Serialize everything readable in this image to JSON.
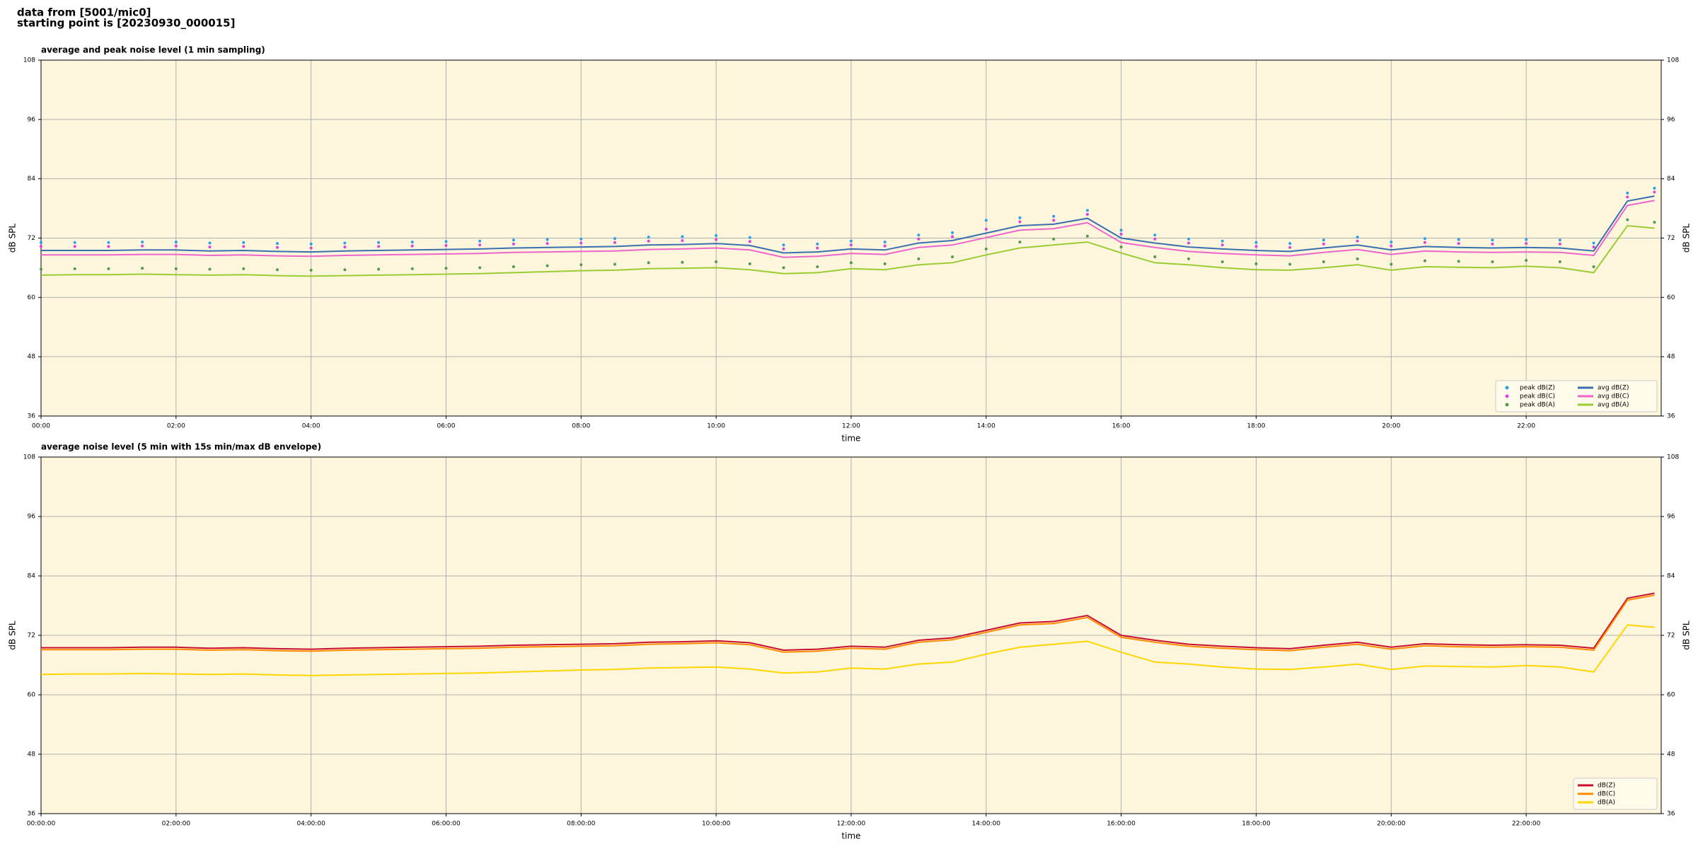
{
  "header": {
    "lines": [
      "data from [5001/mic0]",
      "starting point is [20230930_000015]"
    ]
  },
  "chart_data": [
    {
      "type": "line",
      "title": "average and peak noise level (1 min sampling)",
      "xlabel": "time",
      "ylabel": "dB SPL",
      "background": "#fdf5dc",
      "grid": true,
      "legend": "lower right",
      "legend_columns": 2,
      "xlim": [
        0,
        24
      ],
      "ylim": [
        36,
        108
      ],
      "yticks": [
        36,
        48,
        60,
        72,
        84,
        96,
        108
      ],
      "xticks": [
        {
          "value": 0,
          "label": "00:00"
        },
        {
          "value": 2,
          "label": "02:00"
        },
        {
          "value": 4,
          "label": "04:00"
        },
        {
          "value": 6,
          "label": "06:00"
        },
        {
          "value": 8,
          "label": "08:00"
        },
        {
          "value": 10,
          "label": "10:00"
        },
        {
          "value": 12,
          "label": "12:00"
        },
        {
          "value": 14,
          "label": "14:00"
        },
        {
          "value": 16,
          "label": "16:00"
        },
        {
          "value": 18,
          "label": "18:00"
        },
        {
          "value": 20,
          "label": "20:00"
        },
        {
          "value": 22,
          "label": "22:00"
        }
      ],
      "x": [
        0,
        0.5,
        1,
        1.5,
        2,
        2.5,
        3,
        3.5,
        4,
        4.5,
        5,
        5.5,
        6,
        6.5,
        7,
        7.5,
        8,
        8.5,
        9,
        9.5,
        10,
        10.5,
        11,
        11.5,
        12,
        12.5,
        13,
        13.5,
        14,
        14.5,
        15,
        15.5,
        16,
        16.5,
        17,
        17.5,
        18,
        18.5,
        19,
        19.5,
        20,
        20.5,
        21,
        21.5,
        22,
        22.5,
        23,
        23.5,
        23.9
      ],
      "series": [
        {
          "name": "peak dB(Z)",
          "color": "#2aa0e8",
          "marker": "dot",
          "values": [
            71.1,
            71.1,
            71.1,
            71.2,
            71.2,
            71.0,
            71.1,
            70.9,
            70.8,
            71.0,
            71.1,
            71.2,
            71.3,
            71.4,
            71.6,
            71.7,
            71.8,
            71.9,
            72.2,
            72.3,
            72.5,
            72.1,
            70.6,
            70.8,
            71.4,
            71.2,
            72.6,
            73.1,
            75.6,
            76.1,
            76.4,
            77.6,
            73.6,
            72.6,
            71.8,
            71.4,
            71.1,
            70.9,
            71.6,
            72.2,
            71.2,
            71.9,
            71.7,
            71.6,
            71.7,
            71.6,
            71.0,
            81.1,
            82.1
          ]
        },
        {
          "name": "peak dB(C)",
          "color": "#e040e0",
          "marker": "dot",
          "values": [
            70.3,
            70.3,
            70.3,
            70.4,
            70.4,
            70.2,
            70.3,
            70.1,
            70.0,
            70.2,
            70.3,
            70.4,
            70.5,
            70.6,
            70.8,
            70.9,
            71.0,
            71.1,
            71.4,
            71.5,
            71.7,
            71.3,
            69.8,
            70.0,
            70.6,
            70.4,
            71.8,
            72.3,
            73.8,
            75.3,
            75.6,
            76.8,
            72.8,
            71.8,
            71.0,
            70.6,
            70.3,
            70.1,
            70.8,
            71.4,
            70.4,
            71.1,
            70.9,
            70.8,
            70.9,
            70.8,
            70.2,
            80.3,
            81.3
          ]
        },
        {
          "name": "peak dB(A)",
          "color": "#4f9a4f",
          "marker": "dot",
          "values": [
            65.7,
            65.8,
            65.8,
            65.9,
            65.8,
            65.7,
            65.8,
            65.6,
            65.5,
            65.6,
            65.7,
            65.8,
            65.9,
            66.0,
            66.2,
            66.4,
            66.6,
            66.7,
            67.0,
            67.1,
            67.2,
            66.8,
            66.0,
            66.2,
            67.0,
            66.8,
            67.8,
            68.2,
            69.8,
            71.2,
            71.8,
            72.4,
            70.2,
            68.2,
            67.8,
            67.2,
            66.8,
            66.7,
            67.2,
            67.8,
            66.7,
            67.4,
            67.3,
            67.2,
            67.5,
            67.2,
            66.2,
            75.7,
            75.2
          ]
        },
        {
          "name": "avg dB(Z)",
          "color": "#3a6fb0",
          "marker": "line",
          "values": [
            69.5,
            69.5,
            69.5,
            69.6,
            69.6,
            69.4,
            69.5,
            69.3,
            69.2,
            69.4,
            69.5,
            69.6,
            69.7,
            69.8,
            70.0,
            70.1,
            70.2,
            70.3,
            70.6,
            70.7,
            70.9,
            70.5,
            69.0,
            69.2,
            69.8,
            69.6,
            71.0,
            71.5,
            73.0,
            74.5,
            74.8,
            76.0,
            72.0,
            71.0,
            70.2,
            69.8,
            69.5,
            69.3,
            70.0,
            70.6,
            69.6,
            70.3,
            70.1,
            70.0,
            70.1,
            70.0,
            69.4,
            79.5,
            80.5
          ]
        },
        {
          "name": "avg dB(C)",
          "color": "#ee66cc",
          "marker": "line",
          "values": [
            68.6,
            68.6,
            68.6,
            68.7,
            68.7,
            68.5,
            68.6,
            68.4,
            68.3,
            68.5,
            68.6,
            68.7,
            68.8,
            68.9,
            69.1,
            69.2,
            69.3,
            69.4,
            69.7,
            69.8,
            70.0,
            69.6,
            68.1,
            68.3,
            68.9,
            68.7,
            70.1,
            70.6,
            72.1,
            73.6,
            73.9,
            75.1,
            71.1,
            70.1,
            69.3,
            68.9,
            68.6,
            68.4,
            69.1,
            69.7,
            68.7,
            69.4,
            69.2,
            69.1,
            69.2,
            69.1,
            68.5,
            78.6,
            79.6
          ]
        },
        {
          "name": "avg dB(A)",
          "color": "#9acd32",
          "marker": "line",
          "values": [
            64.5,
            64.6,
            64.6,
            64.7,
            64.6,
            64.5,
            64.6,
            64.4,
            64.3,
            64.4,
            64.5,
            64.6,
            64.7,
            64.8,
            65.0,
            65.2,
            65.4,
            65.5,
            65.8,
            65.9,
            66.0,
            65.6,
            64.8,
            65.0,
            65.8,
            65.6,
            66.6,
            67.0,
            68.6,
            70.0,
            70.6,
            71.2,
            69.0,
            67.0,
            66.6,
            66.0,
            65.6,
            65.5,
            66.0,
            66.6,
            65.5,
            66.2,
            66.1,
            66.0,
            66.3,
            66.0,
            65.0,
            74.5,
            74.0
          ]
        }
      ]
    },
    {
      "type": "line",
      "title": "average noise level (5 min with 15s min/max dB envelope)",
      "xlabel": "time",
      "ylabel": "dB SPL",
      "background": "#fdf5dc",
      "grid": true,
      "legend": "lower right",
      "legend_columns": 1,
      "xlim": [
        0,
        24
      ],
      "ylim": [
        36,
        108
      ],
      "yticks": [
        36,
        48,
        60,
        72,
        84,
        96,
        108
      ],
      "xticks": [
        {
          "value": 0,
          "label": "00:00:00"
        },
        {
          "value": 2,
          "label": "02:00:00"
        },
        {
          "value": 4,
          "label": "04:00:00"
        },
        {
          "value": 6,
          "label": "06:00:00"
        },
        {
          "value": 8,
          "label": "08:00:00"
        },
        {
          "value": 10,
          "label": "10:00:00"
        },
        {
          "value": 12,
          "label": "12:00:00"
        },
        {
          "value": 14,
          "label": "14:00:00"
        },
        {
          "value": 16,
          "label": "16:00:00"
        },
        {
          "value": 18,
          "label": "18:00:00"
        },
        {
          "value": 20,
          "label": "20:00:00"
        },
        {
          "value": 22,
          "label": "22:00:00"
        }
      ],
      "x": [
        0,
        0.5,
        1,
        1.5,
        2,
        2.5,
        3,
        3.5,
        4,
        4.5,
        5,
        5.5,
        6,
        6.5,
        7,
        7.5,
        8,
        8.5,
        9,
        9.5,
        10,
        10.5,
        11,
        11.5,
        12,
        12.5,
        13,
        13.5,
        14,
        14.5,
        15,
        15.5,
        16,
        16.5,
        17,
        17.5,
        18,
        18.5,
        19,
        19.5,
        20,
        20.5,
        21,
        21.5,
        22,
        22.5,
        23,
        23.5,
        23.9
      ],
      "series": [
        {
          "name": "dB(Z)",
          "color": "#c8102e",
          "marker": "line",
          "values": [
            69.5,
            69.5,
            69.5,
            69.6,
            69.6,
            69.4,
            69.5,
            69.3,
            69.2,
            69.4,
            69.5,
            69.6,
            69.7,
            69.8,
            70.0,
            70.1,
            70.2,
            70.3,
            70.6,
            70.7,
            70.9,
            70.5,
            69.0,
            69.2,
            69.8,
            69.6,
            71.0,
            71.5,
            73.0,
            74.5,
            74.8,
            76.0,
            72.0,
            71.0,
            70.2,
            69.8,
            69.5,
            69.3,
            70.0,
            70.6,
            69.6,
            70.3,
            70.1,
            70.0,
            70.1,
            70.0,
            69.4,
            79.5,
            80.5
          ]
        },
        {
          "name": "dB(C)",
          "color": "#ff8c00",
          "marker": "line",
          "values": [
            69.1,
            69.1,
            69.1,
            69.2,
            69.2,
            69.0,
            69.1,
            68.9,
            68.8,
            69.0,
            69.1,
            69.2,
            69.3,
            69.4,
            69.6,
            69.7,
            69.8,
            69.9,
            70.2,
            70.3,
            70.5,
            70.1,
            68.6,
            68.8,
            69.4,
            69.2,
            70.6,
            71.1,
            72.6,
            74.1,
            74.4,
            75.6,
            71.6,
            70.6,
            69.8,
            69.4,
            69.1,
            68.9,
            69.6,
            70.2,
            69.2,
            69.9,
            69.7,
            69.6,
            69.7,
            69.6,
            69.0,
            79.1,
            80.1
          ]
        },
        {
          "name": "dB(A)",
          "color": "#ffd700",
          "marker": "line",
          "values": [
            64.1,
            64.2,
            64.2,
            64.3,
            64.2,
            64.1,
            64.2,
            64.0,
            63.9,
            64.0,
            64.1,
            64.2,
            64.3,
            64.4,
            64.6,
            64.8,
            65.0,
            65.1,
            65.4,
            65.5,
            65.6,
            65.2,
            64.4,
            64.6,
            65.4,
            65.2,
            66.2,
            66.6,
            68.2,
            69.6,
            70.2,
            70.8,
            68.6,
            66.6,
            66.2,
            65.6,
            65.2,
            65.1,
            65.6,
            66.2,
            65.1,
            65.8,
            65.7,
            65.6,
            65.9,
            65.6,
            64.6,
            74.1,
            73.6
          ]
        }
      ]
    }
  ]
}
